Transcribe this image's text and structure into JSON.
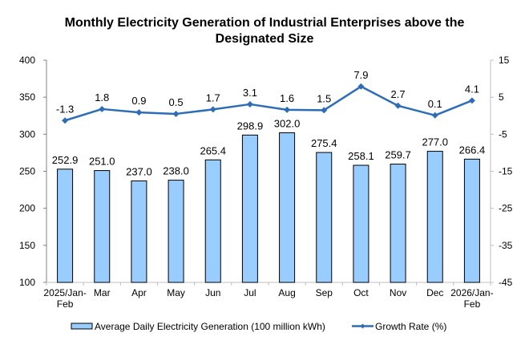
{
  "chart_data": {
    "type": "bar",
    "title": "Monthly Electricity Generation of Industrial Enterprises above the Designated Size",
    "title_lines": [
      "Monthly Electricity Generation of Industrial Enterprises above the",
      "Designated Size"
    ],
    "categories": [
      [
        "2025/Jan-",
        "Feb"
      ],
      [
        "Mar"
      ],
      [
        "Apr"
      ],
      [
        "May"
      ],
      [
        "Jun"
      ],
      [
        "Jul"
      ],
      [
        "Aug"
      ],
      [
        "Sep"
      ],
      [
        "Oct"
      ],
      [
        "Nov"
      ],
      [
        "Dec"
      ],
      [
        "2026/Jan-",
        "Feb"
      ]
    ],
    "series": [
      {
        "name": "Average Daily Electricity Generation (100 million kWh)",
        "type": "bar",
        "axis": "left",
        "color": "#99CCFF",
        "edge_color": "#000000",
        "values": [
          252.9,
          251.0,
          237.0,
          238.0,
          265.4,
          298.9,
          302.0,
          275.4,
          258.1,
          259.7,
          277.0,
          266.4
        ],
        "labels": [
          "252.9",
          "251.0",
          "237.0",
          "238.0",
          "265.4",
          "298.9",
          "302.0",
          "275.4",
          "258.1",
          "259.7",
          "277.0",
          "266.4"
        ]
      },
      {
        "name": "Growth Rate (%)",
        "type": "line",
        "axis": "right",
        "color": "#2E6DB4",
        "values": [
          -1.3,
          1.8,
          0.9,
          0.5,
          1.7,
          3.1,
          1.6,
          1.5,
          7.9,
          2.7,
          0.1,
          4.1
        ],
        "labels": [
          "-1.3",
          "1.8",
          "0.9",
          "0.5",
          "1.7",
          "3.1",
          "1.6",
          "1.5",
          "7.9",
          "2.7",
          "0.1",
          "4.1"
        ]
      }
    ],
    "y_left": {
      "min": 100,
      "max": 400,
      "ticks": [
        "100",
        "150",
        "200",
        "250",
        "300",
        "350",
        "400"
      ]
    },
    "y_right": {
      "min": -45,
      "max": 15,
      "ticks": [
        "-45",
        "-35",
        "-25",
        "-15",
        "-5",
        "5",
        "15"
      ]
    },
    "xlabel": "",
    "ylabel": "",
    "grid": false,
    "legend_position": "bottom"
  }
}
